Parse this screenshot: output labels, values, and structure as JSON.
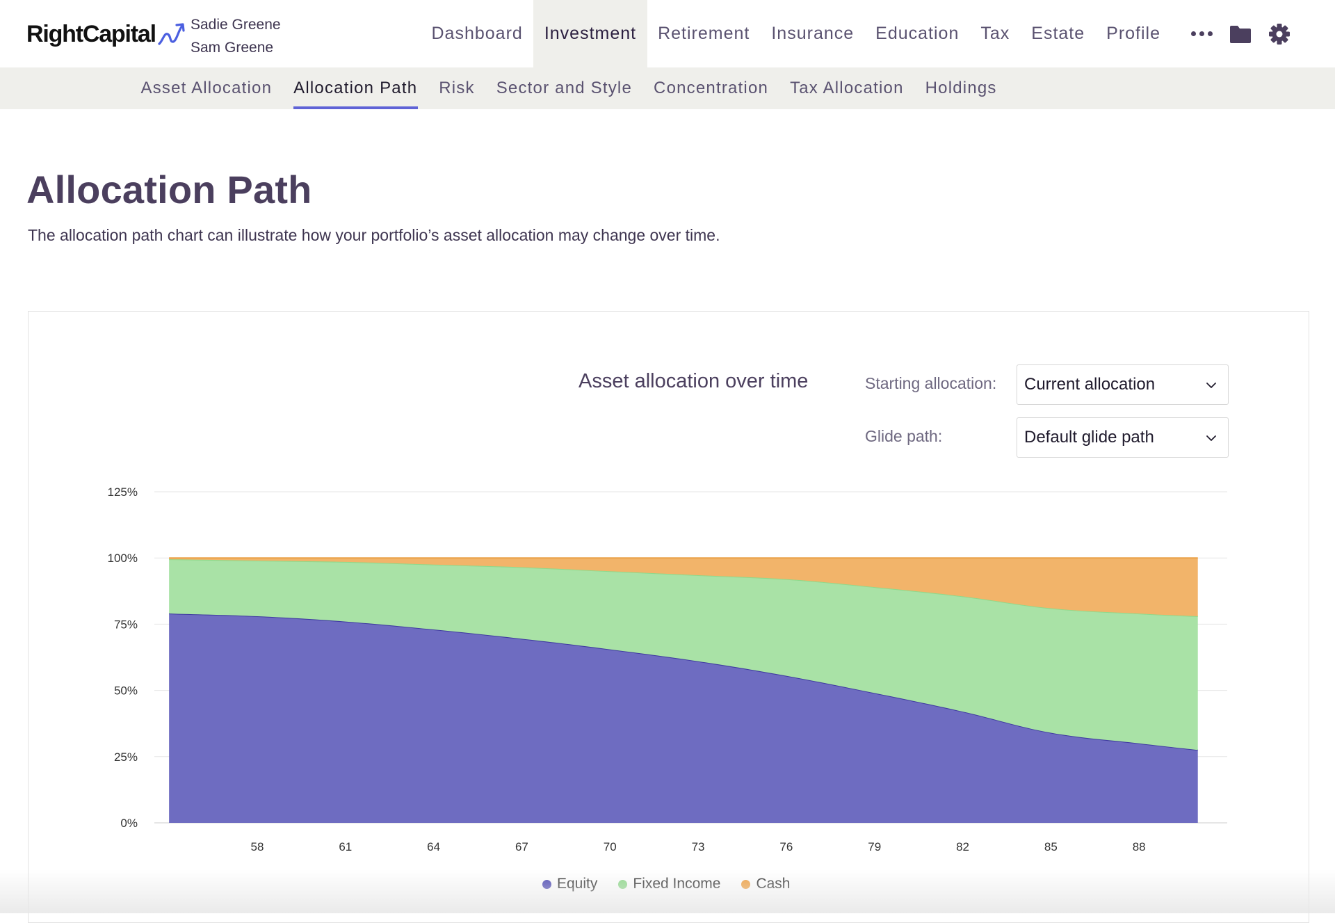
{
  "brand": {
    "name": "RightCapital",
    "accent": "#4b5fe0"
  },
  "clients": {
    "primary": "Sadie Greene",
    "secondary": "Sam Greene"
  },
  "nav": {
    "items": [
      "Dashboard",
      "Investment",
      "Retirement",
      "Insurance",
      "Education",
      "Tax",
      "Estate",
      "Profile"
    ],
    "active": "Investment",
    "icons": [
      "more-icon",
      "folder-icon",
      "gear-icon"
    ]
  },
  "subnav": {
    "items": [
      "Asset Allocation",
      "Allocation Path",
      "Risk",
      "Sector and Style",
      "Concentration",
      "Tax Allocation",
      "Holdings"
    ],
    "active": "Allocation Path"
  },
  "page": {
    "title": "Allocation Path",
    "description": "The allocation path chart can illustrate how your portfolio’s asset allocation may change over time."
  },
  "controls": {
    "starting_label": "Starting allocation:",
    "starting_value": "Current allocation",
    "glide_label": "Glide path:",
    "glide_value": "Default glide path"
  },
  "chart_data": {
    "type": "area",
    "stacked": true,
    "title": "Asset allocation over time",
    "xlabel": "",
    "ylabel": "",
    "x": [
      55,
      58,
      61,
      64,
      67,
      70,
      73,
      76,
      79,
      82,
      85,
      88,
      90
    ],
    "x_ticks": [
      58,
      61,
      64,
      67,
      70,
      73,
      76,
      79,
      82,
      85,
      88
    ],
    "y_ticks": [
      "0%",
      "25%",
      "50%",
      "75%",
      "100%",
      "125%"
    ],
    "ylim": [
      0,
      125
    ],
    "series": [
      {
        "name": "Equity",
        "color": "#4b47b3",
        "values": [
          79,
          78,
          76,
          73,
          69.5,
          65.5,
          61,
          55.5,
          49,
          42,
          34,
          30,
          27.5
        ]
      },
      {
        "name": "Fixed Income",
        "color": "#a9e2a6",
        "values": [
          20.5,
          21,
          22.5,
          24.5,
          27,
          29.5,
          32.5,
          36.5,
          40,
          43.5,
          47,
          49,
          50.5
        ]
      },
      {
        "name": "Cash",
        "color": "#f2b46a",
        "values": [
          0.5,
          1,
          1.5,
          2.5,
          3.5,
          5,
          6.5,
          8,
          11,
          14.5,
          19,
          21,
          22
        ]
      }
    ],
    "legend_position": "bottom-center",
    "grid": true
  }
}
